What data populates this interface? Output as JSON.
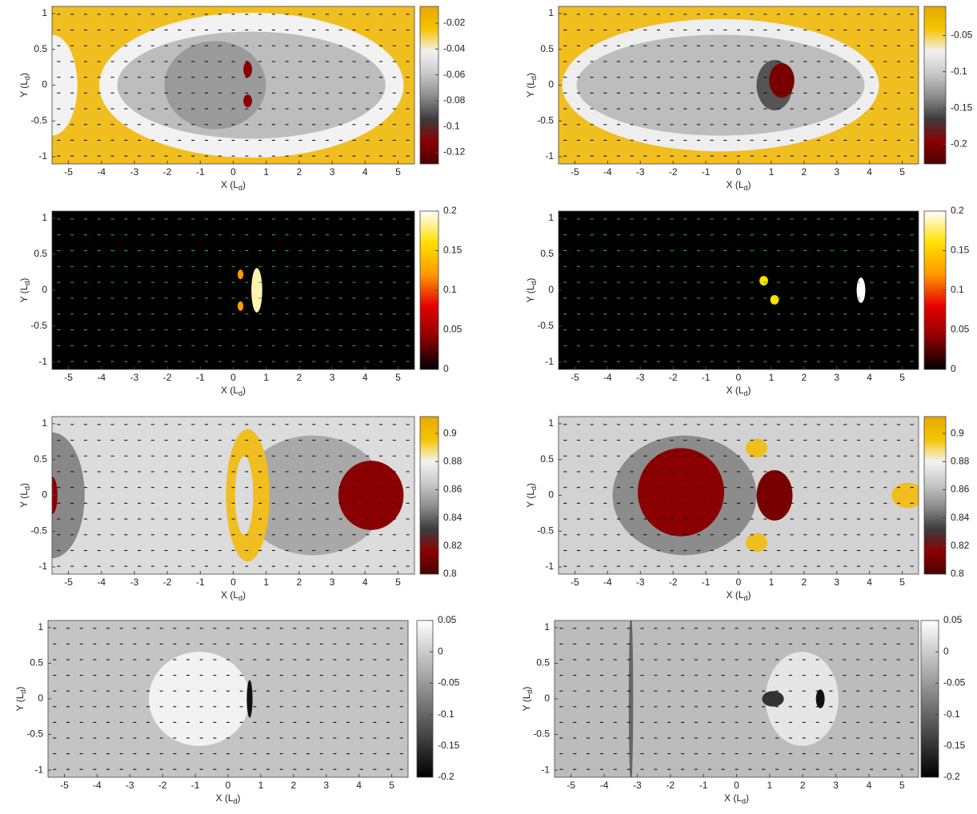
{
  "chart_data": [
    {
      "type": "contour",
      "xlim": [
        -5.5,
        5.5
      ],
      "ylim": [
        -1.1,
        1.1
      ],
      "xticks": [
        -5,
        -4,
        -3,
        -2,
        -1,
        0,
        1,
        2,
        3,
        4,
        5
      ],
      "yticks": [
        -1,
        -0.5,
        0,
        0.5,
        1
      ],
      "xlabel": [
        "X (L",
        "d",
        ")"
      ],
      "ylabel": [
        "Y (L",
        "d",
        ")"
      ],
      "background": "#f0be1e",
      "arrow_color": "#000000",
      "colorbar": {
        "lim": [
          -0.129,
          -0.007
        ],
        "ticks": [
          -0.12,
          -0.1,
          -0.08,
          -0.06,
          -0.04,
          -0.02
        ],
        "colors": [
          "#4a0000",
          "#8b0000",
          "#3c3c3c",
          "#8c8c8c",
          "#c8c8c8",
          "#f2f2f2",
          "#f5c400",
          "#e6a800"
        ]
      }
    },
    {
      "type": "contour",
      "xlim": [
        -5.5,
        5.5
      ],
      "ylim": [
        -1.1,
        1.1
      ],
      "xticks": [
        -5,
        -4,
        -3,
        -2,
        -1,
        0,
        1,
        2,
        3,
        4,
        5
      ],
      "yticks": [
        -1,
        -0.5,
        0,
        0.5,
        1
      ],
      "xlabel": [
        "X (L",
        "d",
        ")"
      ],
      "ylabel": [
        "Y (L",
        "d",
        ")"
      ],
      "background": "#f0be1e",
      "arrow_color": "#000000",
      "colorbar": {
        "lim": [
          -0.227,
          -0.01
        ],
        "ticks": [
          -0.2,
          -0.15,
          -0.1,
          -0.05
        ],
        "colors": [
          "#4a0000",
          "#8b0000",
          "#3c3c3c",
          "#8c8c8c",
          "#c8c8c8",
          "#f2f2f2",
          "#f5c400",
          "#e6a800"
        ]
      }
    },
    {
      "type": "contour",
      "xlim": [
        -5.5,
        5.5
      ],
      "ylim": [
        -1.1,
        1.1
      ],
      "xticks": [
        -5,
        -4,
        -3,
        -2,
        -1,
        0,
        1,
        2,
        3,
        4,
        5
      ],
      "yticks": [
        -1,
        -0.5,
        0,
        0.5,
        1
      ],
      "xlabel": [
        "X (L",
        "d",
        ")"
      ],
      "ylabel": [
        "Y (L",
        "d",
        ")"
      ],
      "background": "#000000",
      "arrow_color": "#2fbf2f",
      "colorbar": {
        "lim": [
          0,
          0.2
        ],
        "ticks": [
          0,
          0.05,
          0.1,
          0.15,
          0.2
        ],
        "colors": [
          "#000000",
          "#8b0000",
          "#e60000",
          "#ff9900",
          "#ffe000",
          "#ffffff"
        ]
      }
    },
    {
      "type": "contour",
      "xlim": [
        -5.5,
        5.5
      ],
      "ylim": [
        -1.1,
        1.1
      ],
      "xticks": [
        -5,
        -4,
        -3,
        -2,
        -1,
        0,
        1,
        2,
        3,
        4,
        5
      ],
      "yticks": [
        -1,
        -0.5,
        0,
        0.5,
        1
      ],
      "xlabel": [
        "X (L",
        "d",
        ")"
      ],
      "ylabel": [
        "Y (L",
        "d",
        ")"
      ],
      "background": "#000000",
      "arrow_color": "#2fbf2f",
      "colorbar": {
        "lim": [
          0,
          0.2
        ],
        "ticks": [
          0,
          0.05,
          0.1,
          0.15,
          0.2
        ],
        "colors": [
          "#000000",
          "#8b0000",
          "#e60000",
          "#ff9900",
          "#ffe000",
          "#ffffff"
        ]
      }
    },
    {
      "type": "contour",
      "xlim": [
        -5.5,
        5.5
      ],
      "ylim": [
        -1.1,
        1.1
      ],
      "xticks": [
        -5,
        -4,
        -3,
        -2,
        -1,
        0,
        1,
        2,
        3,
        4,
        5
      ],
      "yticks": [
        -1,
        -0.5,
        0,
        0.5,
        1
      ],
      "xlabel": [
        "X (L",
        "d",
        ")"
      ],
      "ylabel": [
        "Y (L",
        "d",
        ")"
      ],
      "background": "#dcdcdc",
      "arrow_color": "#000000",
      "colorbar": {
        "lim": [
          0.8,
          0.912
        ],
        "ticks": [
          0.8,
          0.82,
          0.84,
          0.86,
          0.88,
          0.9
        ],
        "colors": [
          "#4a0000",
          "#8b0000",
          "#3c3c3c",
          "#8c8c8c",
          "#c8c8c8",
          "#f2f2f2",
          "#f5c400",
          "#e6a800"
        ]
      }
    },
    {
      "type": "contour",
      "xlim": [
        -5.5,
        5.5
      ],
      "ylim": [
        -1.1,
        1.1
      ],
      "xticks": [
        -5,
        -4,
        -3,
        -2,
        -1,
        0,
        1,
        2,
        3,
        4,
        5
      ],
      "yticks": [
        -1,
        -0.5,
        0,
        0.5,
        1
      ],
      "xlabel": [
        "X (L",
        "d",
        ")"
      ],
      "ylabel": [
        "Y (L",
        "d",
        ")"
      ],
      "background": "#d2d2d2",
      "arrow_color": "#000000",
      "colorbar": {
        "lim": [
          0.8,
          0.912
        ],
        "ticks": [
          0.8,
          0.82,
          0.84,
          0.86,
          0.88,
          0.9
        ],
        "colors": [
          "#4a0000",
          "#8b0000",
          "#3c3c3c",
          "#8c8c8c",
          "#c8c8c8",
          "#f2f2f2",
          "#f5c400",
          "#e6a800"
        ]
      }
    },
    {
      "type": "contour",
      "xlim": [
        -5.5,
        5.5
      ],
      "ylim": [
        -1.1,
        1.1
      ],
      "xticks": [
        -5,
        -4,
        -3,
        -2,
        -1,
        0,
        1,
        2,
        3,
        4,
        5
      ],
      "yticks": [
        -1,
        -0.5,
        0,
        0.5,
        1
      ],
      "xlabel": [
        "X (L",
        "d",
        ")"
      ],
      "ylabel": [
        "Y (L",
        "d",
        ")"
      ],
      "background": "#c4c4c4",
      "arrow_color": "#000000",
      "colorbar": {
        "lim": [
          -0.2,
          0.05
        ],
        "ticks": [
          -0.2,
          -0.15,
          -0.1,
          -0.05,
          0,
          0.05
        ],
        "colors": [
          "#000000",
          "#ffffff"
        ]
      }
    },
    {
      "type": "contour",
      "xlim": [
        -5.5,
        5.5
      ],
      "ylim": [
        -1.1,
        1.1
      ],
      "xticks": [
        -5,
        -4,
        -3,
        -2,
        -1,
        0,
        1,
        2,
        3,
        4,
        5
      ],
      "yticks": [
        -1,
        -0.5,
        0,
        0.5,
        1
      ],
      "xlabel": [
        "X (L",
        "d",
        ")"
      ],
      "ylabel": [
        "Y (L",
        "d",
        ")"
      ],
      "background": "#bcbcbc",
      "arrow_color": "#000000",
      "colorbar": {
        "lim": [
          -0.2,
          0.05
        ],
        "ticks": [
          -0.2,
          -0.15,
          -0.1,
          -0.05,
          0,
          0.05
        ],
        "colors": [
          "#000000",
          "#ffffff"
        ]
      }
    }
  ]
}
